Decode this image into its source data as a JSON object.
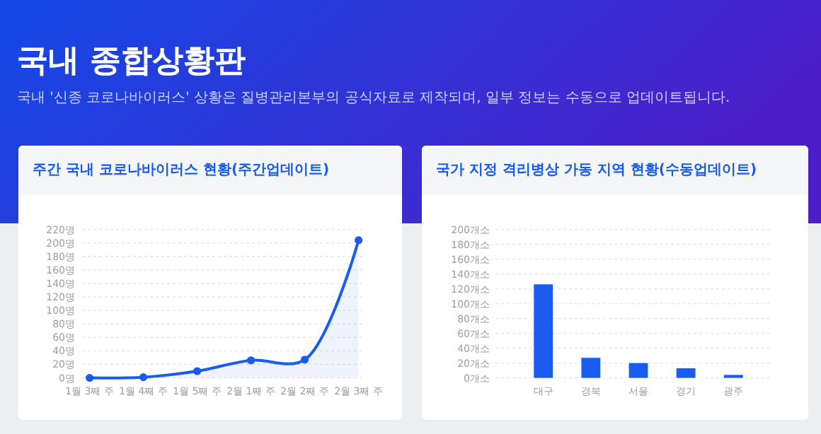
{
  "chart_data": [
    {
      "type": "other",
      "title": "국내 종합상황판",
      "subtitle": "국내 '신종 코로나바이러스' 상황은 질병관리본부의 공식자료로 제작되며, 일부 정보는 수동으로 업데이트됩니다."
    },
    {
      "type": "line",
      "title": "주간 국내 코로나바이러스 현황(주간업데이트)",
      "categories": [
        "1월 3째 주",
        "1월 4째 주",
        "1월 5째 주",
        "2월 1째 주",
        "2월 2째 주",
        "2월 3째 주"
      ],
      "series": [
        {
          "type": "area",
          "color": "#1a5cf0",
          "values": [
            0,
            1,
            10,
            26,
            27,
            204
          ]
        }
      ],
      "marker": "circle",
      "ylim": [
        0,
        220
      ],
      "yticks": [
        {
          "value": 0,
          "label": "0명"
        },
        {
          "value": 20,
          "label": "20명"
        },
        {
          "value": 40,
          "label": "40명"
        },
        {
          "value": 60,
          "label": "60명"
        },
        {
          "value": 80,
          "label": "80명"
        },
        {
          "value": 100,
          "label": "100명"
        },
        {
          "value": 120,
          "label": "120명"
        },
        {
          "value": 140,
          "label": "140명"
        },
        {
          "value": 160,
          "label": "160명"
        },
        {
          "value": 180,
          "label": "180명"
        },
        {
          "value": 200,
          "label": "200명"
        },
        {
          "value": 220,
          "label": "220명"
        }
      ],
      "grid": "y"
    },
    {
      "type": "bar",
      "title": "국가 지정 격리병상 가동 지역 현황(수동업데이트)",
      "categories": [
        "대구",
        "경북",
        "서울",
        "경기",
        "광주"
      ],
      "values": [
        126,
        27,
        20,
        13,
        4
      ],
      "color": "#1a5cf0",
      "ylim": [
        0,
        200
      ],
      "yticks": [
        {
          "value": 0,
          "label": "0개소"
        },
        {
          "value": 20,
          "label": "20개소"
        },
        {
          "value": 40,
          "label": "40개소"
        },
        {
          "value": 60,
          "label": "60개소"
        },
        {
          "value": 80,
          "label": "80개소"
        },
        {
          "value": 100,
          "label": "100개소"
        },
        {
          "value": 120,
          "label": "120개소"
        },
        {
          "value": 140,
          "label": "140개소"
        },
        {
          "value": 160,
          "label": "160개소"
        },
        {
          "value": 180,
          "label": "180개소"
        },
        {
          "value": 200,
          "label": "200개소"
        }
      ],
      "grid": "y"
    }
  ]
}
